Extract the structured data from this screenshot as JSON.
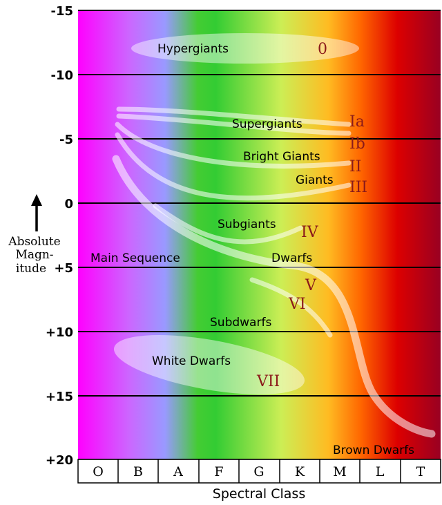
{
  "colors": {
    "spectrum": [
      "#ff00ff",
      "#cc66ff",
      "#9999ff",
      "#44cc33",
      "#33cc33",
      "#ccee55",
      "#ffbb22",
      "#ff6600",
      "#dd0000",
      "#990022"
    ],
    "band": "#ffffff",
    "class_label": "#8b1a1a"
  },
  "y_axis": {
    "ticks": [
      "-15",
      "-10",
      "-5",
      "0",
      "+5",
      "+10",
      "+15",
      "+20"
    ],
    "label_lines": [
      "Absolute",
      "Magn-",
      "itude"
    ],
    "arrow_icon": "up-arrow-icon"
  },
  "x_axis": {
    "classes": [
      "O",
      "B",
      "A",
      "F",
      "G",
      "K",
      "M",
      "L",
      "T"
    ],
    "title": "Spectral Class"
  },
  "regions": {
    "hypergiants": {
      "name": "Hypergiants",
      "class": "0"
    },
    "supergiants": {
      "name": "Supergiants",
      "class_a": "Ia",
      "class_b": "Ib"
    },
    "bright_giants": {
      "name": "Bright Giants",
      "class": "II"
    },
    "giants": {
      "name": "Giants",
      "class": "III"
    },
    "subgiants": {
      "name": "Subgiants",
      "class": "IV"
    },
    "main_sequence": {
      "name": "Main Sequence"
    },
    "dwarfs": {
      "name": "Dwarfs",
      "class": "V"
    },
    "subdwarfs": {
      "name": "Subdwarfs",
      "class": "VI"
    },
    "white_dwarfs": {
      "name": "White Dwarfs",
      "class": "VII"
    },
    "brown_dwarfs": {
      "name": "Brown Dwarfs"
    }
  }
}
